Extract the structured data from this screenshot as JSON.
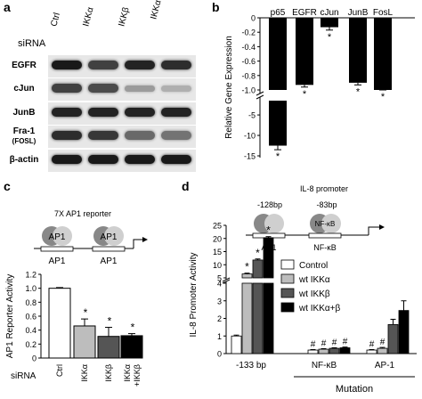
{
  "panels": {
    "a": {
      "letter": "a",
      "sirna_label": "siRNA",
      "columns": [
        "Ctrl",
        "IKKα",
        "IKKβ",
        "IKKα+IKKβ"
      ],
      "rows": [
        {
          "label": "EGFR",
          "intensity": [
            1.0,
            0.8,
            0.95,
            0.9
          ]
        },
        {
          "label": "cJun",
          "intensity": [
            0.8,
            0.75,
            0.35,
            0.25
          ]
        },
        {
          "label": "JunB",
          "intensity": [
            0.95,
            0.95,
            0.95,
            0.95
          ]
        },
        {
          "label_line1": "Fra-1",
          "label_line2": "(FOSL)",
          "intensity": [
            0.9,
            0.85,
            0.6,
            0.55
          ]
        },
        {
          "label": "β-actin",
          "intensity": [
            1.0,
            1.0,
            1.0,
            1.0
          ]
        }
      ]
    },
    "b": {
      "letter": "b",
      "ylabel": "Relative Gene Expression",
      "categories": [
        "p65",
        "EGFR",
        "cJun",
        "JunB",
        "FosL"
      ],
      "star": "*"
    },
    "c": {
      "letter": "c",
      "reporter_title": "7X AP1 reporter",
      "site_label": "AP1",
      "ylabel": "AP1 Reporter Activity",
      "sirna_label": "siRNA",
      "categories": [
        "Ctrl",
        "IKKα",
        "IKKβ",
        "IKKα +IKKβ"
      ],
      "star": "*"
    },
    "d": {
      "letter": "d",
      "promoter_title": "IL-8 promoter",
      "site1_pos": "-128bp",
      "site2_pos": "-83bp",
      "site1_label": "AP1",
      "site2_label": "NF-κB",
      "site2_glyph": "NF-κB",
      "ylabel": "IL-8 Promoter Activity",
      "groups": [
        "-133 bp",
        "NF-κB",
        "AP-1"
      ],
      "mutation_label": "Mutation",
      "legend": [
        "Control",
        "wt IKKα",
        "wt IKKβ",
        "wt IKKα+β"
      ],
      "star": "*",
      "hash": "#"
    }
  },
  "chart_data": [
    {
      "type": "bar",
      "panel": "b",
      "categories": [
        "p65",
        "EGFR",
        "cJun",
        "JunB",
        "FosL"
      ],
      "values": [
        -12.5,
        -0.93,
        -0.13,
        -0.9,
        -1.0
      ],
      "errors": [
        1.0,
        0.03,
        0.04,
        0.03,
        0.0
      ],
      "significance": [
        "*",
        "*",
        "*",
        "*",
        "*"
      ],
      "ylabel": "Relative Gene Expression",
      "y_ticks": [
        0,
        -0.2,
        -0.4,
        -0.6,
        -0.8,
        -1.0,
        -5,
        -10,
        -15
      ],
      "y_axis_break": [
        -1.0,
        -1.5
      ],
      "ylim": [
        -15,
        0
      ],
      "color": "#000000"
    },
    {
      "type": "bar",
      "panel": "c",
      "categories": [
        "Ctrl",
        "IKKα",
        "IKKβ",
        "IKKα +IKKβ"
      ],
      "values": [
        1.0,
        0.46,
        0.31,
        0.32
      ],
      "errors": [
        0.01,
        0.1,
        0.13,
        0.03
      ],
      "significance": [
        "",
        "*",
        "*",
        "*"
      ],
      "colors": [
        "#ffffff",
        "#bdbdbd",
        "#555555",
        "#000000"
      ],
      "ylabel": "AP1 Reporter Activity",
      "ylim": [
        0,
        1.2
      ],
      "y_ticks": [
        0,
        0.2,
        0.4,
        0.6,
        0.8,
        1.0,
        1.2
      ]
    },
    {
      "type": "bar",
      "panel": "d",
      "categories": [
        "-133 bp",
        "NF-κB",
        "AP-1"
      ],
      "series": [
        {
          "name": "Control",
          "values": [
            1.0,
            0.2,
            0.2
          ],
          "errors": [
            0.05,
            0.03,
            0.03
          ],
          "color": "#ffffff"
        },
        {
          "name": "wt IKKα",
          "values": [
            6.5,
            0.25,
            0.3
          ],
          "errors": [
            0.3,
            0.03,
            0.05
          ],
          "color": "#bdbdbd"
        },
        {
          "name": "wt IKKβ",
          "values": [
            11.8,
            0.3,
            1.65
          ],
          "errors": [
            0.4,
            0.03,
            0.3
          ],
          "color": "#555555"
        },
        {
          "name": "wt IKKα+β",
          "values": [
            20.3,
            0.33,
            2.45
          ],
          "errors": [
            0.4,
            0.04,
            0.55
          ],
          "color": "#000000"
        }
      ],
      "significance": [
        [
          "",
          "*",
          "*",
          "*"
        ],
        [
          "#",
          "#",
          "#",
          "#"
        ],
        [
          "#",
          "#",
          "",
          ""
        ]
      ],
      "ylabel": "IL-8 Promoter Activity",
      "y_ticks": [
        0,
        1,
        2,
        3,
        4,
        5,
        10,
        15,
        20,
        25
      ],
      "y_axis_break": [
        4,
        5
      ],
      "ylim": [
        0,
        25
      ]
    }
  ]
}
